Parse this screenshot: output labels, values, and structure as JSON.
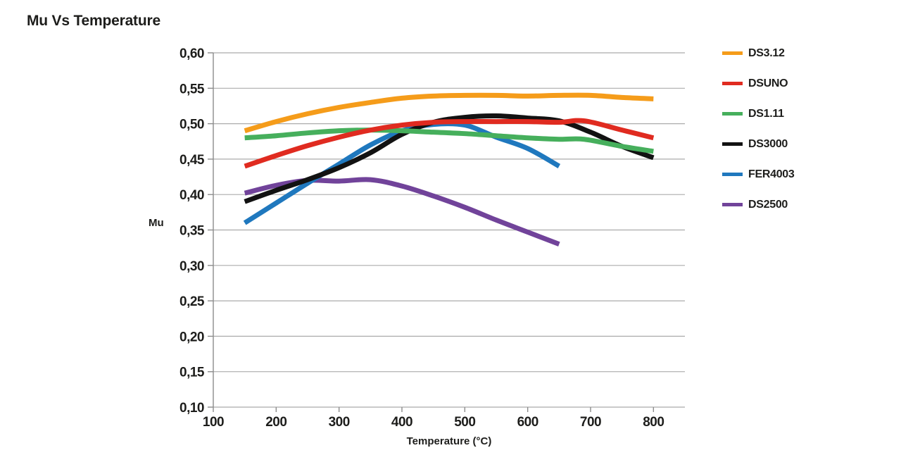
{
  "header": {
    "title": "Mu Vs Temperature"
  },
  "chart_data": {
    "type": "line",
    "title": "Mu Vs Temperature",
    "xlabel": "Temperature (°C)",
    "ylabel": "Mu",
    "xlim": [
      100,
      850
    ],
    "ylim": [
      0.1,
      0.6
    ],
    "x_ticks": [
      100,
      200,
      300,
      400,
      500,
      600,
      700,
      800
    ],
    "x_tick_labels": [
      "100",
      "200",
      "300",
      "400",
      "500",
      "600",
      "700",
      "800"
    ],
    "y_ticks": [
      0.6,
      0.55,
      0.5,
      0.45,
      0.4,
      0.35,
      0.3,
      0.25,
      0.2,
      0.15,
      0.1
    ],
    "y_tick_labels": [
      "0,60",
      "0,55",
      "0,50",
      "0,45",
      "0,40",
      "0,35",
      "0,30",
      "0,25",
      "0,20",
      "0,15",
      "0,10"
    ],
    "grid": "horizontal",
    "legend_position": "right",
    "colors": {
      "grid": "#ababab",
      "axis": "#8c8c8c",
      "text": "#1d1d1b",
      "background": "#ffffff"
    },
    "series": [
      {
        "name": "DS3.12",
        "color": "#F59C1A",
        "points": [
          [
            150,
            0.49
          ],
          [
            200,
            0.503
          ],
          [
            250,
            0.514
          ],
          [
            300,
            0.523
          ],
          [
            350,
            0.53
          ],
          [
            400,
            0.536
          ],
          [
            450,
            0.539
          ],
          [
            500,
            0.54
          ],
          [
            550,
            0.54
          ],
          [
            600,
            0.539
          ],
          [
            650,
            0.54
          ],
          [
            700,
            0.54
          ],
          [
            750,
            0.537
          ],
          [
            800,
            0.535
          ]
        ]
      },
      {
        "name": "DSUNO",
        "color": "#E02B20",
        "points": [
          [
            150,
            0.44
          ],
          [
            200,
            0.455
          ],
          [
            250,
            0.469
          ],
          [
            300,
            0.481
          ],
          [
            350,
            0.491
          ],
          [
            400,
            0.498
          ],
          [
            450,
            0.502
          ],
          [
            500,
            0.503
          ],
          [
            550,
            0.503
          ],
          [
            600,
            0.503
          ],
          [
            650,
            0.502
          ],
          [
            690,
            0.504
          ],
          [
            750,
            0.491
          ],
          [
            800,
            0.48
          ]
        ]
      },
      {
        "name": "DS1.11",
        "color": "#46AF5C",
        "points": [
          [
            150,
            0.48
          ],
          [
            200,
            0.483
          ],
          [
            250,
            0.487
          ],
          [
            300,
            0.49
          ],
          [
            350,
            0.491
          ],
          [
            400,
            0.49
          ],
          [
            450,
            0.488
          ],
          [
            500,
            0.486
          ],
          [
            550,
            0.483
          ],
          [
            600,
            0.48
          ],
          [
            650,
            0.478
          ],
          [
            690,
            0.478
          ],
          [
            750,
            0.468
          ],
          [
            800,
            0.461
          ]
        ]
      },
      {
        "name": "DS3000",
        "color": "#121212",
        "points": [
          [
            150,
            0.39
          ],
          [
            200,
            0.406
          ],
          [
            250,
            0.421
          ],
          [
            300,
            0.438
          ],
          [
            350,
            0.459
          ],
          [
            400,
            0.485
          ],
          [
            450,
            0.502
          ],
          [
            500,
            0.509
          ],
          [
            550,
            0.511
          ],
          [
            600,
            0.508
          ],
          [
            650,
            0.504
          ],
          [
            700,
            0.488
          ],
          [
            750,
            0.468
          ],
          [
            800,
            0.452
          ]
        ]
      },
      {
        "name": "FER4003",
        "color": "#1F78BE",
        "points": [
          [
            150,
            0.36
          ],
          [
            200,
            0.388
          ],
          [
            250,
            0.416
          ],
          [
            300,
            0.443
          ],
          [
            350,
            0.47
          ],
          [
            400,
            0.49
          ],
          [
            450,
            0.499
          ],
          [
            500,
            0.498
          ],
          [
            550,
            0.481
          ],
          [
            600,
            0.465
          ],
          [
            650,
            0.44
          ]
        ]
      },
      {
        "name": "DS2500",
        "color": "#71439A",
        "points": [
          [
            150,
            0.402
          ],
          [
            200,
            0.413
          ],
          [
            250,
            0.42
          ],
          [
            300,
            0.419
          ],
          [
            350,
            0.421
          ],
          [
            400,
            0.412
          ],
          [
            450,
            0.398
          ],
          [
            500,
            0.382
          ],
          [
            550,
            0.364
          ],
          [
            600,
            0.347
          ],
          [
            650,
            0.33
          ]
        ]
      }
    ]
  }
}
